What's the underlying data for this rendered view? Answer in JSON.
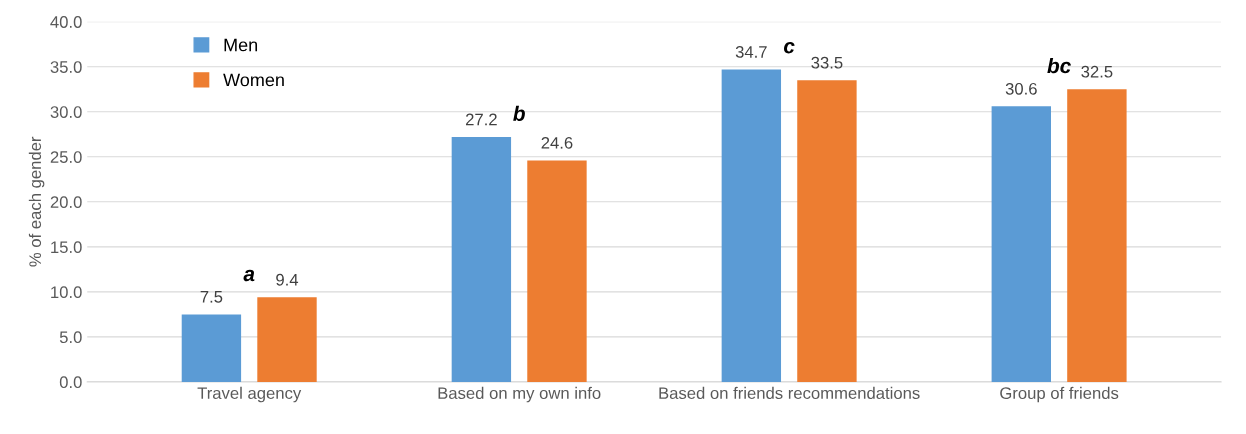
{
  "chart_data": {
    "type": "bar",
    "ylabel": "% of each gender",
    "categories": [
      "Travel agency",
      "Based on my own info",
      "Based on friends recommendations",
      "Group of friends"
    ],
    "series": [
      {
        "name": "Men",
        "color": "#5b9bd5",
        "values": [
          7.5,
          27.2,
          34.7,
          30.6
        ]
      },
      {
        "name": "Women",
        "color": "#ed7d31",
        "values": [
          9.4,
          24.6,
          33.5,
          32.5
        ]
      }
    ],
    "ylim": [
      0,
      40
    ],
    "yticks": [
      {
        "value": 0,
        "label": "0.0"
      },
      {
        "value": 5,
        "label": "5.0"
      },
      {
        "value": 10,
        "label": "10.0"
      },
      {
        "value": 15,
        "label": "15.0"
      },
      {
        "value": 20,
        "label": "20.0"
      },
      {
        "value": 25,
        "label": "25.0"
      },
      {
        "value": 30,
        "label": "30.0"
      },
      {
        "value": 35,
        "label": "35.0"
      },
      {
        "value": 40,
        "label": "40.0"
      }
    ],
    "grid": "y",
    "legend": "top left",
    "data_labels": true,
    "annotations": [
      "a",
      "b",
      "c",
      "bc"
    ]
  }
}
